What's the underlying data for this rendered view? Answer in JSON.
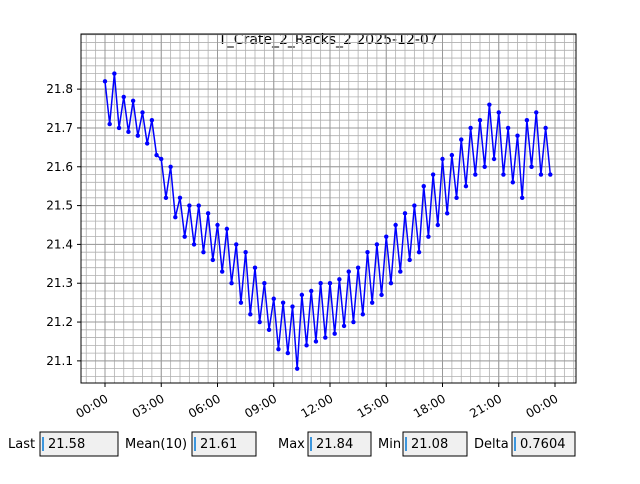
{
  "chart_data": {
    "type": "line",
    "title": "T_Crate_2_Racks_2 2025-12-07",
    "x": [
      0,
      0.25,
      0.5,
      0.75,
      1,
      1.25,
      1.5,
      1.75,
      2,
      2.25,
      2.5,
      2.75,
      3,
      3.25,
      3.5,
      3.75,
      4,
      4.25,
      4.5,
      4.75,
      5,
      5.25,
      5.5,
      5.75,
      6,
      6.25,
      6.5,
      6.75,
      7,
      7.25,
      7.5,
      7.75,
      8,
      8.25,
      8.5,
      8.75,
      9,
      9.25,
      9.5,
      9.75,
      10,
      10.25,
      10.5,
      10.75,
      11,
      11.25,
      11.5,
      11.75,
      12,
      12.25,
      12.5,
      12.75,
      13,
      13.25,
      13.5,
      13.75,
      14,
      14.25,
      14.5,
      14.75,
      15,
      15.25,
      15.5,
      15.75,
      16,
      16.25,
      16.5,
      16.75,
      17,
      17.25,
      17.5,
      17.75,
      18,
      18.25,
      18.5,
      18.75,
      19,
      19.25,
      19.5,
      19.75,
      20,
      20.25,
      20.5,
      20.75,
      21,
      21.25,
      21.5,
      21.75,
      22,
      22.25,
      22.5,
      22.75,
      23,
      23.25,
      23.5,
      23.75
    ],
    "series": [
      {
        "color": "#0000ff",
        "values": [
          21.82,
          21.71,
          21.84,
          21.7,
          21.78,
          21.69,
          21.77,
          21.68,
          21.74,
          21.66,
          21.72,
          21.63,
          21.62,
          21.52,
          21.6,
          21.47,
          21.52,
          21.42,
          21.5,
          21.4,
          21.5,
          21.38,
          21.48,
          21.36,
          21.45,
          21.33,
          21.44,
          21.3,
          21.4,
          21.25,
          21.38,
          21.22,
          21.34,
          21.2,
          21.3,
          21.18,
          21.26,
          21.13,
          21.25,
          21.12,
          21.24,
          21.08,
          21.27,
          21.14,
          21.28,
          21.15,
          21.3,
          21.16,
          21.3,
          21.17,
          21.31,
          21.19,
          21.33,
          21.2,
          21.34,
          21.22,
          21.38,
          21.25,
          21.4,
          21.27,
          21.42,
          21.3,
          21.45,
          21.33,
          21.48,
          21.36,
          21.5,
          21.38,
          21.55,
          21.42,
          21.58,
          21.45,
          21.62,
          21.48,
          21.63,
          21.52,
          21.67,
          21.55,
          21.7,
          21.58,
          21.72,
          21.6,
          21.76,
          21.62,
          21.74,
          21.58,
          21.7,
          21.56,
          21.68,
          21.52,
          21.72,
          21.6,
          21.74,
          21.58,
          21.7,
          21.58
        ]
      }
    ],
    "xlim": [
      -1.28,
      25.12
    ],
    "ylim": [
      21.043,
      21.942
    ],
    "xticks": [
      {
        "value": 0,
        "label": "00:00"
      },
      {
        "value": 3,
        "label": "03:00"
      },
      {
        "value": 6,
        "label": "06:00"
      },
      {
        "value": 9,
        "label": "09:00"
      },
      {
        "value": 12,
        "label": "12:00"
      },
      {
        "value": 15,
        "label": "15:00"
      },
      {
        "value": 18,
        "label": "18:00"
      },
      {
        "value": 21,
        "label": "21:00"
      },
      {
        "value": 24,
        "label": "00:00"
      }
    ],
    "yticks": [
      21.1,
      21.2,
      21.3,
      21.4,
      21.5,
      21.6,
      21.7,
      21.8
    ],
    "grid": true,
    "x_minor_step": 0.5,
    "y_minor_step": 0.02
  },
  "stats": [
    {
      "label": "Last",
      "value": 21.58
    },
    {
      "label": "Mean(10)",
      "value": 21.61
    },
    {
      "label": "Max",
      "value": 21.84
    },
    {
      "label": "Min",
      "value": 21.08
    },
    {
      "label": "Delta",
      "value": 0.7604
    }
  ]
}
